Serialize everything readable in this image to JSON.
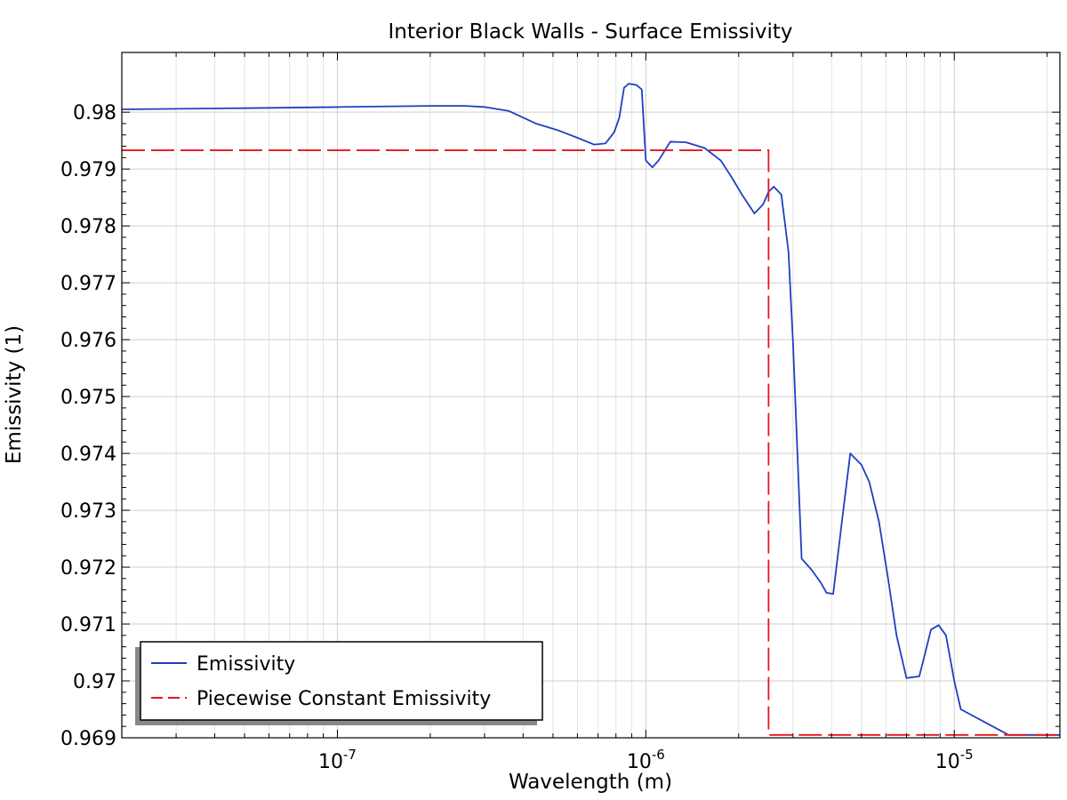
{
  "chart_data": {
    "type": "line",
    "title": "Interior Black Walls - Surface Emissivity",
    "xlabel": "Wavelength (m)",
    "ylabel": "Emissivity (1)",
    "xscale": "log",
    "xlim": [
      2e-08,
      2.2e-05
    ],
    "ylim": [
      0.969,
      0.98105
    ],
    "grid": true,
    "legend_position": "bottom-left",
    "xtick_labels": [
      {
        "value": 1e-07,
        "base": "10",
        "exp": "-7"
      },
      {
        "value": 1e-06,
        "base": "10",
        "exp": "-6"
      },
      {
        "value": 1e-05,
        "base": "10",
        "exp": "-5"
      }
    ],
    "yticks": [
      0.969,
      0.97,
      0.971,
      0.972,
      0.973,
      0.974,
      0.975,
      0.976,
      0.977,
      0.978,
      0.979,
      0.98
    ],
    "ytick_labels": [
      "0.969",
      "0.97",
      "0.971",
      "0.972",
      "0.973",
      "0.974",
      "0.975",
      "0.976",
      "0.977",
      "0.978",
      "0.979",
      "0.98"
    ],
    "series": [
      {
        "name": "Emissivity",
        "color": "#1f3fbf",
        "style": "solid",
        "x": [
          2e-08,
          5e-08,
          1e-07,
          2e-07,
          2.6e-07,
          3e-07,
          3.6e-07,
          4.4e-07,
          5.2e-07,
          6e-07,
          6.8e-07,
          7.4e-07,
          7.9e-07,
          8.2e-07,
          8.5e-07,
          8.8e-07,
          9.3e-07,
          9.7e-07,
          1e-06,
          1.05e-06,
          1.1e-06,
          1.2e-06,
          1.35e-06,
          1.55e-06,
          1.75e-06,
          1.9e-06,
          2.05e-06,
          2.25e-06,
          2.4e-06,
          2.5e-06,
          2.6e-06,
          2.75e-06,
          2.9e-06,
          3e-06,
          3.2e-06,
          3.45e-06,
          3.7e-06,
          3.85e-06,
          4.05e-06,
          4.3e-06,
          4.6e-06,
          5e-06,
          5.3e-06,
          5.7e-06,
          6.1e-06,
          6.5e-06,
          7e-06,
          7.7e-06,
          8.1e-06,
          8.4e-06,
          8.9e-06,
          9.4e-06,
          1e-05,
          1.05e-05,
          1.5e-05,
          2.2e-05
        ],
        "y": [
          0.98005,
          0.98007,
          0.98009,
          0.98011,
          0.98011,
          0.98009,
          0.98002,
          0.9798,
          0.97968,
          0.97955,
          0.97943,
          0.97945,
          0.97965,
          0.9799,
          0.98043,
          0.9805,
          0.98048,
          0.9804,
          0.97915,
          0.97903,
          0.97915,
          0.97948,
          0.97947,
          0.97937,
          0.97915,
          0.97885,
          0.97855,
          0.97822,
          0.97838,
          0.9786,
          0.97869,
          0.97855,
          0.97755,
          0.97595,
          0.97215,
          0.97195,
          0.97172,
          0.97155,
          0.97153,
          0.9727,
          0.974,
          0.9738,
          0.9735,
          0.9728,
          0.9718,
          0.9708,
          0.97005,
          0.97008,
          0.97055,
          0.9709,
          0.97098,
          0.9708,
          0.97,
          0.9695,
          0.96905,
          0.96905
        ]
      },
      {
        "name": "Piecewise Constant Emissivity",
        "color": "#e8141c",
        "style": "dashed",
        "x": [
          2e-08,
          2.5e-06,
          2.5e-06,
          2.2e-05
        ],
        "y": [
          0.97933,
          0.97933,
          0.96905,
          0.96905
        ]
      }
    ]
  }
}
